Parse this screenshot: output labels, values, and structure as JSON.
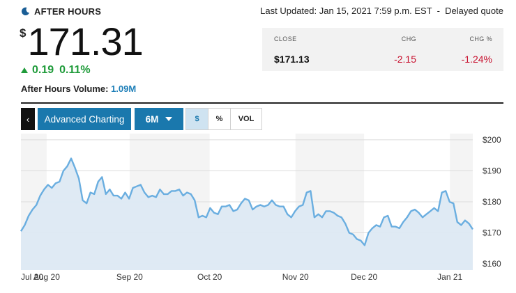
{
  "status": {
    "icon": "moon-icon",
    "label": "AFTER HOURS"
  },
  "quote": {
    "currency": "$",
    "price": "171.31",
    "change": "0.19",
    "change_pct": "0.11%",
    "volume_label": "After Hours Volume:",
    "volume_value": "1.09M"
  },
  "last_updated": "Last Updated: Jan 15, 2021 7:59 p.m. EST  -  Delayed quote",
  "close_table": {
    "headers": [
      "CLOSE",
      "CHG",
      "CHG %"
    ],
    "values": [
      "$171.13",
      "-2.15",
      "-1.24%"
    ]
  },
  "toolbar": {
    "back_glyph": "‹",
    "advanced_label": "Advanced Charting",
    "range_label": "6M",
    "dollar_label": "$",
    "percent_label": "%",
    "volume_label": "VOL"
  },
  "colors": {
    "accent": "#1a78ad",
    "positive": "#1f9b3a",
    "negative": "#c8102e",
    "line": "#6aaee0",
    "area": "#dde9f3"
  },
  "chart_data": {
    "type": "area",
    "ylim": [
      158,
      202
    ],
    "y_ticks": [
      {
        "value": 200,
        "label": "$200"
      },
      {
        "value": 190,
        "label": "$190"
      },
      {
        "value": 180,
        "label": "$180"
      },
      {
        "value": 170,
        "label": "$170"
      },
      {
        "value": 160,
        "label": "$160"
      }
    ],
    "x_tick_labels": [
      "Jul 20",
      "Aug 20",
      "Sep 20",
      "Oct 20",
      "Nov 20",
      "Dec 20",
      "Jan 21"
    ],
    "x_tick_positions": [
      0,
      9,
      38,
      66,
      96,
      120,
      150
    ],
    "x_range": [
      0,
      158
    ],
    "values": [
      170.5,
      172.5,
      175.5,
      177.5,
      179,
      182,
      184,
      185.5,
      184.5,
      186,
      186.5,
      190,
      191.5,
      194,
      191,
      187.5,
      180.5,
      179.5,
      183,
      182.5,
      186.5,
      188,
      182.5,
      184,
      182,
      182,
      181,
      183,
      181,
      184.5,
      185,
      185.5,
      183,
      181.5,
      182,
      181.5,
      184,
      182.5,
      182.5,
      183.5,
      183.5,
      184,
      182,
      183,
      182.5,
      180.5,
      175,
      175.5,
      175,
      178,
      176.5,
      176,
      178.5,
      178.5,
      179,
      177,
      177.5,
      179.5,
      181,
      180.5,
      177.5,
      178.5,
      179,
      178.5,
      179,
      180.5,
      179,
      178.5,
      178.5,
      176,
      175,
      177,
      178.5,
      179,
      183,
      183.5,
      175,
      176,
      175,
      177,
      177,
      176.5,
      175.5,
      175,
      173,
      170,
      169.5,
      168,
      167.5,
      166,
      170,
      171.5,
      172.5,
      172,
      175,
      175.5,
      172,
      172,
      171.5,
      173.5,
      175,
      177,
      177.5,
      176.5,
      175,
      176,
      177,
      178,
      177,
      183,
      183.5,
      180,
      179.5,
      173.5,
      172.5,
      174,
      173,
      171.13
    ]
  }
}
